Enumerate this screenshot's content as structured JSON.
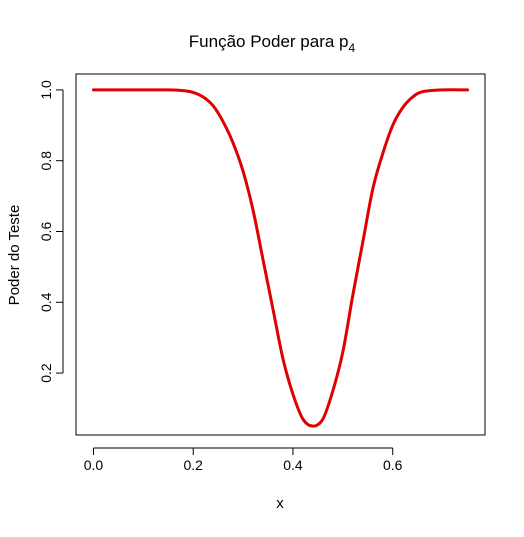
{
  "chart_data": {
    "type": "line",
    "title": "Função Poder para p",
    "title_subscript": "4",
    "xlabel": "x",
    "ylabel": "Poder do Teste",
    "xlim": [
      -0.035,
      0.785
    ],
    "ylim": [
      0.025,
      1.045
    ],
    "xticks": [
      0.0,
      0.2,
      0.4,
      0.6
    ],
    "xtick_labels": [
      "0.0",
      "0.2",
      "0.4",
      "0.6"
    ],
    "yticks": [
      0.2,
      0.4,
      0.6,
      0.8,
      1.0
    ],
    "ytick_labels": [
      "0.2",
      "0.4",
      "0.6",
      "0.8",
      "1.0"
    ],
    "grid": false,
    "legend": "none",
    "series": [
      {
        "color": "#e00000",
        "x": [
          0.0,
          0.05,
          0.1,
          0.15,
          0.18,
          0.2,
          0.22,
          0.24,
          0.26,
          0.28,
          0.3,
          0.32,
          0.34,
          0.36,
          0.38,
          0.4,
          0.42,
          0.44,
          0.46,
          0.48,
          0.5,
          0.52,
          0.54,
          0.56,
          0.58,
          0.6,
          0.62,
          0.64,
          0.66,
          0.7,
          0.75
        ],
        "y": [
          1.0,
          1.0,
          1.0,
          1.0,
          0.998,
          0.993,
          0.98,
          0.955,
          0.91,
          0.85,
          0.77,
          0.66,
          0.52,
          0.38,
          0.24,
          0.14,
          0.07,
          0.05,
          0.07,
          0.15,
          0.26,
          0.42,
          0.57,
          0.72,
          0.82,
          0.9,
          0.95,
          0.98,
          0.995,
          1.0,
          1.0
        ]
      }
    ]
  }
}
